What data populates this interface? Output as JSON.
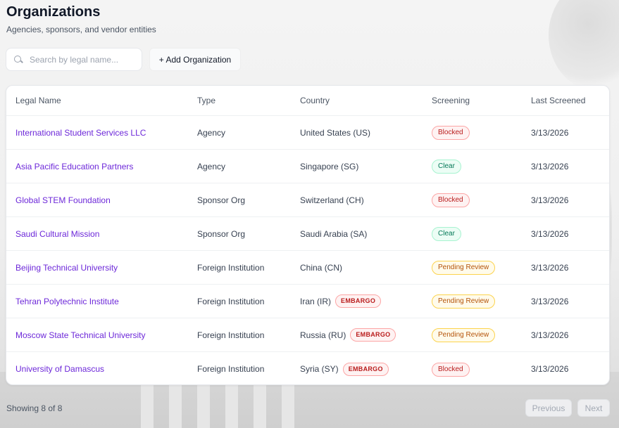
{
  "header": {
    "title": "Organizations",
    "subtitle": "Agencies, sponsors, and vendor entities"
  },
  "toolbar": {
    "search_placeholder": "Search by legal name...",
    "add_label": "+ Add Organization",
    "search_icon": "search-icon"
  },
  "table": {
    "columns": [
      "Legal Name",
      "Type",
      "Country",
      "Screening",
      "Last Screened"
    ],
    "rows": [
      {
        "name": "International Student Services LLC",
        "type": "Agency",
        "country": "United States (US)",
        "embargo": "",
        "screening": "Blocked",
        "status": "blocked",
        "last": "3/13/2026"
      },
      {
        "name": "Asia Pacific Education Partners",
        "type": "Agency",
        "country": "Singapore (SG)",
        "embargo": "",
        "screening": "Clear",
        "status": "clear",
        "last": "3/13/2026"
      },
      {
        "name": "Global STEM Foundation",
        "type": "Sponsor Org",
        "country": "Switzerland (CH)",
        "embargo": "",
        "screening": "Blocked",
        "status": "blocked",
        "last": "3/13/2026"
      },
      {
        "name": "Saudi Cultural Mission",
        "type": "Sponsor Org",
        "country": "Saudi Arabia (SA)",
        "embargo": "",
        "screening": "Clear",
        "status": "clear",
        "last": "3/13/2026"
      },
      {
        "name": "Beijing Technical University",
        "type": "Foreign Institution",
        "country": "China (CN)",
        "embargo": "",
        "screening": "Pending Review",
        "status": "pending",
        "last": "3/13/2026"
      },
      {
        "name": "Tehran Polytechnic Institute",
        "type": "Foreign Institution",
        "country": "Iran (IR)",
        "embargo": "EMBARGO",
        "screening": "Pending Review",
        "status": "pending",
        "last": "3/13/2026"
      },
      {
        "name": "Moscow State Technical University",
        "type": "Foreign Institution",
        "country": "Russia (RU)",
        "embargo": "EMBARGO",
        "screening": "Pending Review",
        "status": "pending",
        "last": "3/13/2026"
      },
      {
        "name": "University of Damascus",
        "type": "Foreign Institution",
        "country": "Syria (SY)",
        "embargo": "EMBARGO",
        "screening": "Blocked",
        "status": "blocked",
        "last": "3/13/2026"
      }
    ]
  },
  "footer": {
    "showing": "Showing 8 of 8",
    "previous_label": "Previous",
    "next_label": "Next"
  },
  "colors": {
    "link": "#6d28d9",
    "blocked": "#b91c1c",
    "clear": "#047857",
    "pending": "#b45309"
  }
}
